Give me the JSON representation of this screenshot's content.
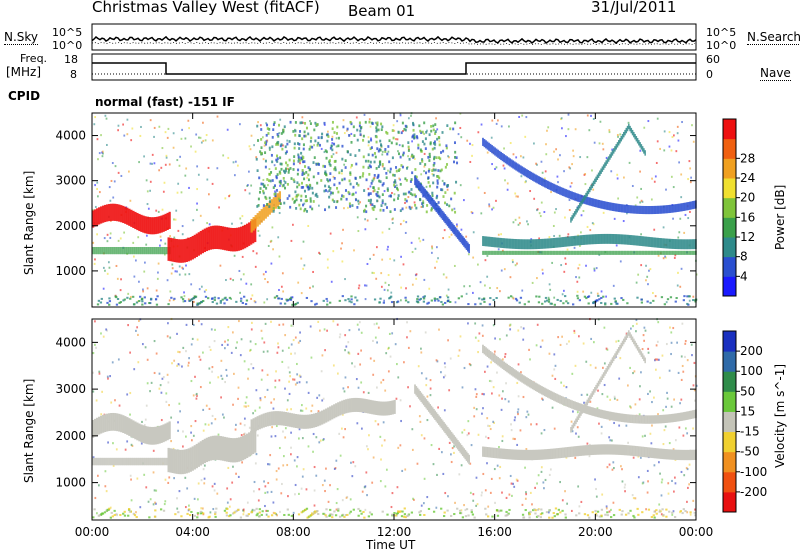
{
  "header": {
    "title": "Christmas Valley West (fitACF)",
    "beam": "Beam 01",
    "date": "31/Jul/2011"
  },
  "strip_labels": {
    "nsky": "N.Sky",
    "nsearch": "N.Search",
    "freq": "Freq.",
    "mhz": "[MHz]",
    "nave": "Nave",
    "cpid": "CPID",
    "cpid_value": "normal (fast) -151 IF"
  },
  "strip_ticks": {
    "noise_top": "10^5",
    "noise_bottom": "10^0",
    "freq_top": "18",
    "freq_bottom": "8",
    "nave_top": "60",
    "nave_bottom": "0"
  },
  "chart_data": [
    {
      "type": "heatmap",
      "name": "power",
      "ylabel": "Slant Range [km]",
      "yticks": [
        "1000",
        "2000",
        "3000",
        "4000"
      ],
      "ylim": [
        200,
        4500
      ],
      "colorbar_label": "Power [dB]",
      "colorbar_ticks": [
        "4",
        "8",
        "12",
        "16",
        "20",
        "24",
        "28"
      ],
      "colorbar_colors": [
        "#1a1aff",
        "#2a4fd0",
        "#2e8a8a",
        "#3aa04a",
        "#7fc43a",
        "#f0e030",
        "#f0a020",
        "#f06010",
        "#ee1010"
      ]
    },
    {
      "type": "heatmap",
      "name": "velocity",
      "ylabel": "Slant Range [km]",
      "yticks": [
        "1000",
        "2000",
        "3000",
        "4000"
      ],
      "ylim": [
        200,
        4500
      ],
      "colorbar_label": "Velocity [m s^-1]",
      "colorbar_ticks": [
        "200",
        "100",
        "50",
        "15",
        "-15",
        "-50",
        "-100",
        "-200"
      ],
      "colorbar_colors": [
        "#1a30c0",
        "#2f6aa8",
        "#2f8c4a",
        "#6ac83a",
        "#c4c4b8",
        "#f0d030",
        "#f09020",
        "#f05010",
        "#e81010"
      ]
    }
  ],
  "xaxis": {
    "label": "Time UT",
    "ticks": [
      "00:00",
      "04:00",
      "08:00",
      "12:00",
      "16:00",
      "20:00",
      "00:00"
    ]
  },
  "colors": {
    "freq_line": "#000000",
    "grey_echo": "#c8c8c0"
  }
}
